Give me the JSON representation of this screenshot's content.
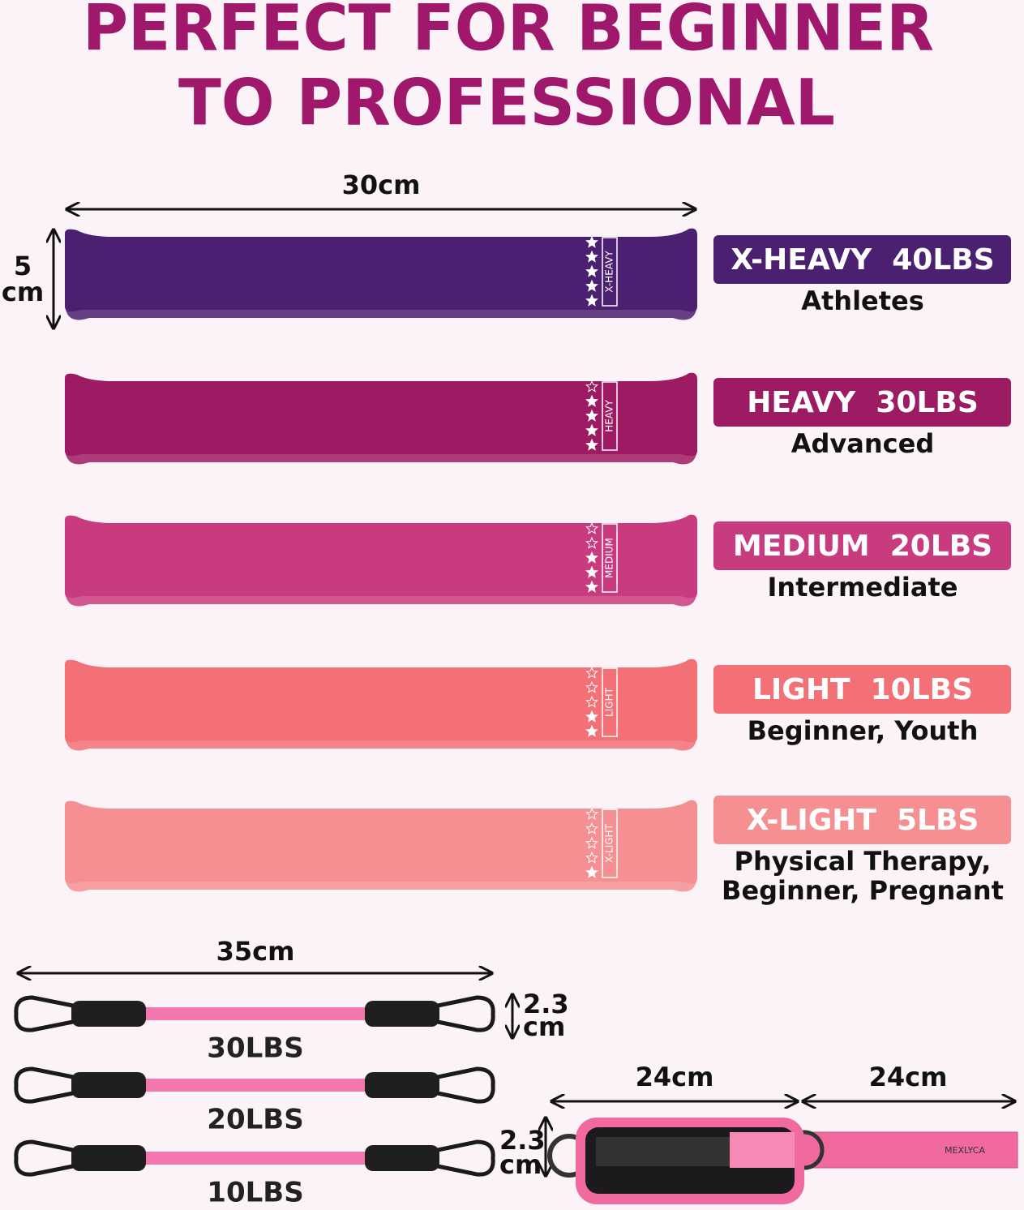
{
  "header": {
    "title_lines": [
      "PERFECT FOR BEGINNER",
      "TO PROFESSIONAL"
    ]
  },
  "loop_bands": {
    "length": "30cm",
    "width": [
      "5",
      "cm"
    ],
    "bands": [
      {
        "band_label": "X-HEAVY",
        "badge": "X-HEAVY  40LBS",
        "users": [
          "Athletes"
        ],
        "stars": 5,
        "color": "#4b2070"
      },
      {
        "band_label": "HEAVY",
        "badge": "HEAVY  30LBS",
        "users": [
          "Advanced"
        ],
        "stars": 4,
        "color": "#9c1b62"
      },
      {
        "band_label": "MEDIUM",
        "badge": "MEDIUM  20LBS",
        "users": [
          "Intermediate"
        ],
        "stars": 3,
        "color": "#c93b7f"
      },
      {
        "band_label": "LIGHT",
        "badge": "LIGHT  10LBS",
        "users": [
          "Beginner, Youth"
        ],
        "stars": 2,
        "color": "#f37077"
      },
      {
        "band_label": "X-LIGHT",
        "badge": "X-LIGHT  5LBS",
        "users": [
          "Physical Therapy,",
          "Beginner, Pregnant"
        ],
        "stars": 1,
        "color": "#f58f91"
      }
    ]
  },
  "tubes": {
    "length": "35cm",
    "diameter": [
      "2.3",
      "cm"
    ],
    "items": [
      {
        "label": "30LBS"
      },
      {
        "label": "20LBS"
      },
      {
        "label": "10LBS"
      }
    ]
  },
  "ankle_strap": {
    "lengths": [
      "24cm",
      "24cm"
    ],
    "width": [
      "2.3",
      "cm"
    ],
    "brand": "MEXLYCA"
  }
}
